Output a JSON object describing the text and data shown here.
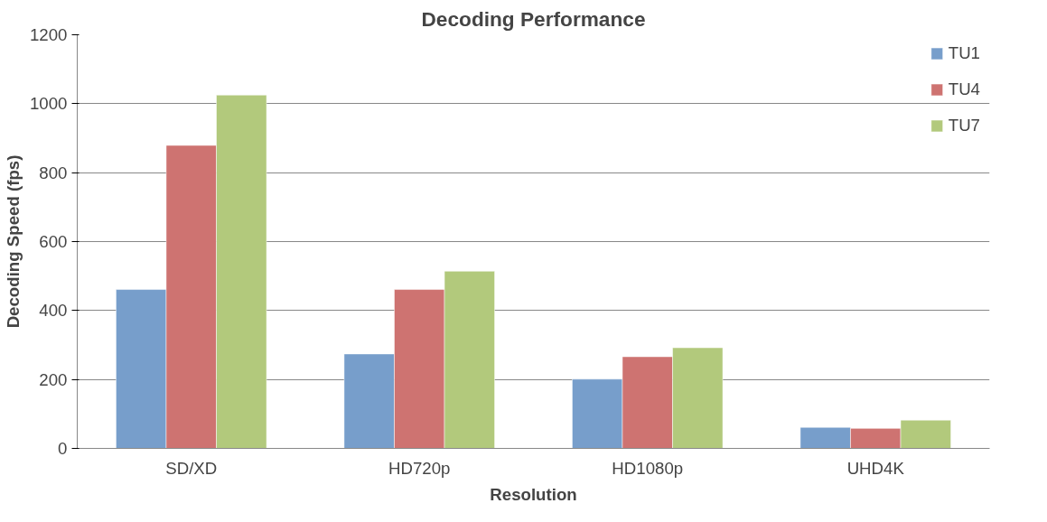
{
  "chart_data": {
    "type": "bar",
    "title": "Decoding Performance",
    "xlabel": "Resolution",
    "ylabel": "Decoding Speed (fps)",
    "categories": [
      "SD/XD",
      "HD720p",
      "HD1080p",
      "UHD4K"
    ],
    "series": [
      {
        "name": "TU1",
        "color": "#779ecb",
        "values": [
          461,
          274,
          201,
          61
        ]
      },
      {
        "name": "TU4",
        "color": "#ce7371",
        "values": [
          879,
          461,
          266,
          58
        ]
      },
      {
        "name": "TU7",
        "color": "#b2c97c",
        "values": [
          1025,
          514,
          292,
          82
        ]
      }
    ],
    "ylim": [
      0,
      1200
    ],
    "yticks": [
      0,
      200,
      400,
      600,
      800,
      1000,
      1200
    ],
    "grid": "y",
    "legend": "top right"
  }
}
